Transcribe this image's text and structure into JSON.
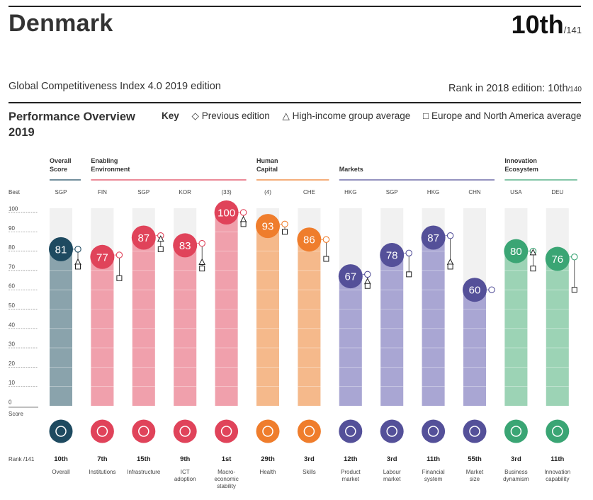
{
  "header": {
    "country": "Denmark",
    "rank": "10th",
    "rank_of": "/141",
    "edition": "Global Competitiveness Index 4.0 2019 edition",
    "prev_rank_label": "Rank in 2018 edition: 10th",
    "prev_rank_of": "/140"
  },
  "overview": {
    "title": "Performance Overview 2019",
    "key_label": "Key",
    "key_items": [
      {
        "symbol": "◇",
        "label": "Previous edition"
      },
      {
        "symbol": "△",
        "label": "High-income group average"
      },
      {
        "symbol": "□",
        "label": "Europe and North America average"
      }
    ]
  },
  "colors": {
    "overall": "#1e4a60",
    "overall_bar": "#8aa3ac",
    "enabling": "#e0435a",
    "enabling_bar": "#f0a0ac",
    "human": "#ef7d2c",
    "human_bar": "#f5b98b",
    "markets": "#545099",
    "markets_bar": "#a9a6d3",
    "innovation": "#3aa574",
    "innovation_bar": "#9cd3b5",
    "overall_line": "#1e4a60",
    "enabling_line": "#e0435a",
    "human_line": "#ef7d2c",
    "markets_line": "#545099",
    "innovation_line": "#3aa574"
  },
  "chart_data": {
    "type": "bar",
    "title": "Performance Overview 2019",
    "ylabel": "Score",
    "ylim": [
      0,
      100
    ],
    "yticks": [
      0,
      10,
      20,
      30,
      40,
      50,
      60,
      70,
      80,
      90,
      100
    ],
    "top_axis_label": "Best",
    "bottom_axis_label": "Score",
    "rank_row_label": "Rank /141",
    "groups": [
      {
        "name": "Overall Score",
        "lines": [
          "Overall",
          "Score"
        ],
        "color_key": "overall",
        "start": 0,
        "end": 0
      },
      {
        "name": "Enabling Environment",
        "lines": [
          "Enabling",
          "Environment"
        ],
        "color_key": "enabling",
        "start": 1,
        "end": 4
      },
      {
        "name": "Human Capital",
        "lines": [
          "Human",
          "Capital"
        ],
        "color_key": "human",
        "start": 5,
        "end": 6
      },
      {
        "name": "Markets",
        "lines": [
          "Markets"
        ],
        "color_key": "markets",
        "start": 7,
        "end": 10
      },
      {
        "name": "Innovation Ecosystem",
        "lines": [
          "Innovation",
          "Ecosystem"
        ],
        "color_key": "innovation",
        "start": 11,
        "end": 12
      }
    ],
    "categories": [
      {
        "label": "Overall",
        "label_lines": [
          "Overall"
        ],
        "best": "SGP",
        "score": 81,
        "previous": 81,
        "high_income": 74,
        "europe_na": 72,
        "rank": "10th",
        "color_key": "overall",
        "icon": "gear-icon"
      },
      {
        "label": "Institutions",
        "label_lines": [
          "Institutions"
        ],
        "best": "FIN",
        "score": 77,
        "previous": 78,
        "high_income": null,
        "europe_na": 66,
        "rank": "7th",
        "color_key": "enabling",
        "icon": "institution-building-icon"
      },
      {
        "label": "Infrastructure",
        "label_lines": [
          "Infrastructure"
        ],
        "best": "SGP",
        "score": 87,
        "previous": 88,
        "high_income": 86,
        "europe_na": 81,
        "rank": "15th",
        "color_key": "enabling",
        "icon": "train-icon"
      },
      {
        "label": "ICT adoption",
        "label_lines": [
          "ICT",
          "adoption"
        ],
        "best": "KOR",
        "score": 83,
        "previous": 84,
        "high_income": 74,
        "europe_na": 71,
        "rank": "9th",
        "color_key": "enabling",
        "icon": "chip-icon"
      },
      {
        "label": "Macro-economic stability",
        "label_lines": [
          "Macro-",
          "economic",
          "stability"
        ],
        "best": "(33)",
        "score": 100,
        "previous": 100,
        "high_income": 96,
        "europe_na": 94,
        "rank": "1st",
        "color_key": "enabling",
        "icon": "percent-icon"
      },
      {
        "label": "Health",
        "label_lines": [
          "Health"
        ],
        "best": "(4)",
        "score": 93,
        "previous": 94,
        "high_income": null,
        "europe_na": 90,
        "rank": "29th",
        "color_key": "human",
        "icon": "heartbeat-icon"
      },
      {
        "label": "Skills",
        "label_lines": [
          "Skills"
        ],
        "best": "CHE",
        "score": 86,
        "previous": 86,
        "high_income": null,
        "europe_na": 76,
        "rank": "3rd",
        "color_key": "human",
        "icon": "graduate-icon"
      },
      {
        "label": "Product market",
        "label_lines": [
          "Product",
          "market"
        ],
        "best": "HKG",
        "score": 67,
        "previous": 68,
        "high_income": 64,
        "europe_na": 62,
        "rank": "12th",
        "color_key": "markets",
        "icon": "price-tag-icon"
      },
      {
        "label": "Labour market",
        "label_lines": [
          "Labour",
          "market"
        ],
        "best": "SGP",
        "score": 78,
        "previous": 79,
        "high_income": null,
        "europe_na": 68,
        "rank": "3rd",
        "color_key": "markets",
        "icon": "people-network-icon"
      },
      {
        "label": "Financial system",
        "label_lines": [
          "Financial",
          "system"
        ],
        "best": "HKG",
        "score": 87,
        "previous": 88,
        "high_income": 74,
        "europe_na": 72,
        "rank": "11th",
        "color_key": "markets",
        "icon": "credit-card-icon"
      },
      {
        "label": "Market size",
        "label_lines": [
          "Market",
          "size"
        ],
        "best": "CHN",
        "score": 60,
        "previous": 60,
        "high_income": null,
        "europe_na": null,
        "rank": "55th",
        "color_key": "markets",
        "icon": "expand-arrow-icon"
      },
      {
        "label": "Business dynamism",
        "label_lines": [
          "Business",
          "dynamism"
        ],
        "best": "USA",
        "score": 80,
        "previous": 80,
        "high_income": 79,
        "europe_na": 71,
        "rank": "3rd",
        "color_key": "innovation",
        "icon": "building-chart-icon"
      },
      {
        "label": "Innovation capability",
        "label_lines": [
          "Innovation",
          "capability"
        ],
        "best": "DEU",
        "score": 76,
        "previous": 77,
        "high_income": null,
        "europe_na": 60,
        "rank": "11th",
        "color_key": "innovation",
        "icon": "lightbulb-icon"
      }
    ]
  }
}
